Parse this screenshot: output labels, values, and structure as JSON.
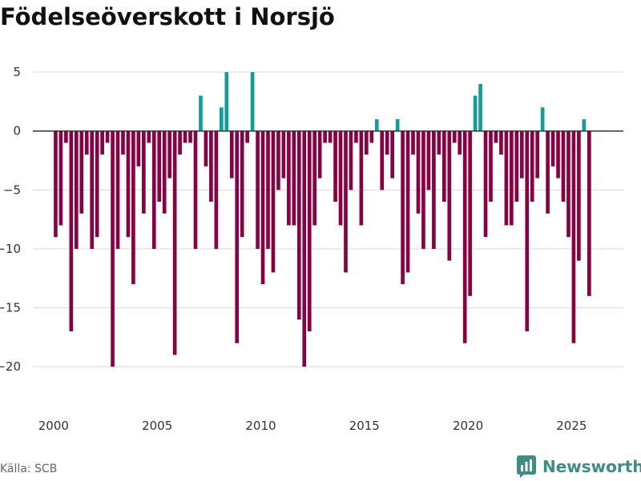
{
  "title": "Födelseöverskott i Norsjö",
  "source": "Källa: SCB",
  "brand": {
    "name": "Newsworthy",
    "icon": "bar-chart-logo-icon"
  },
  "colors": {
    "negative": "#8b0040",
    "positive": "#119e98",
    "grid": "#dddddd",
    "zero_line": "#333333",
    "brand": "#3d8d83"
  },
  "chart_data": {
    "type": "bar",
    "title": "Födelseöverskott i Norsjö",
    "xlabel": "",
    "ylabel": "",
    "xlim": [
      1999,
      2027.5
    ],
    "ylim": [
      -22.5,
      6.5
    ],
    "x_ticks": [
      2000,
      2005,
      2010,
      2015,
      2020,
      2025
    ],
    "y_ticks": [
      5,
      0,
      -5,
      -10,
      -15,
      -20
    ],
    "y_tick_labels": [
      "5",
      "0",
      "−5",
      "−10",
      "−15",
      "−20"
    ],
    "frequency": "quarterly",
    "start": "2000-Q1",
    "values": [
      -9,
      -8,
      -1,
      -17,
      -10,
      -7,
      -2,
      -10,
      -9,
      -2,
      -1,
      -20,
      -10,
      -2,
      -9,
      -13,
      -3,
      -7,
      -1,
      -10,
      -6,
      -7,
      -4,
      -19,
      -2,
      -1,
      -1,
      -10,
      3,
      -3,
      -6,
      -10,
      2,
      5,
      -4,
      -18,
      -9,
      -1,
      5,
      -10,
      -13,
      -10,
      -12,
      -5,
      -4,
      -8,
      -8,
      -16,
      -20,
      -17,
      -8,
      -4,
      -1,
      -1,
      -6,
      -8,
      -12,
      -5,
      -1,
      -8,
      -2,
      -1,
      1,
      -5,
      -2,
      -4,
      1,
      -13,
      -12,
      -2,
      -7,
      -10,
      -5,
      -10,
      -2,
      -6,
      -11,
      -1,
      -2,
      -18,
      -14,
      3,
      4,
      -9,
      -6,
      -1,
      -2,
      -8,
      -8,
      -6,
      -4,
      -17,
      -6,
      -4,
      2,
      -7,
      -3,
      -4,
      -6,
      -9,
      -18,
      -11,
      1,
      -14
    ]
  }
}
